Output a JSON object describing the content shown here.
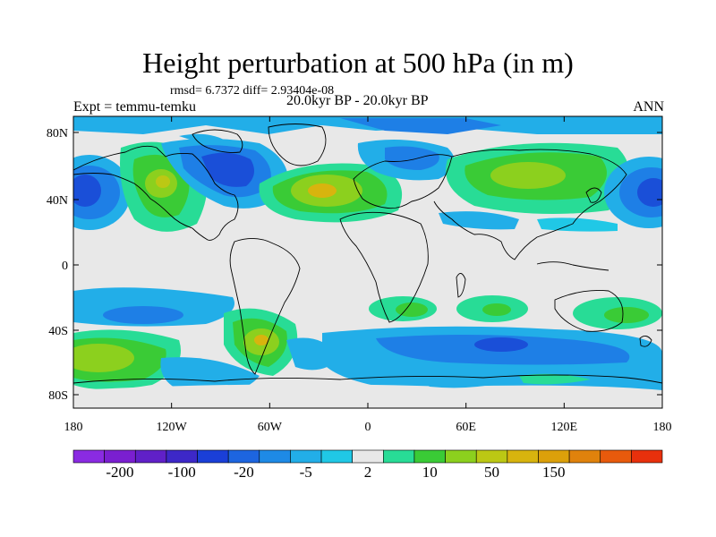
{
  "title": "Height perturbation at 500 hPa (in m)",
  "stats_line": "rmsd= 6.7372 diff= 2.93404e-08",
  "experiment_line": "Expt = temmu-temku",
  "period_line": "20.0kyr BP - 20.0kyr BP",
  "season": "ANN",
  "lat_labels": [
    "80N",
    "40N",
    "0",
    "40S",
    "80S"
  ],
  "lon_labels": [
    "180",
    "120W",
    "60W",
    "0",
    "60E",
    "120E",
    "180"
  ],
  "colorbar": {
    "colors": [
      "#8a2be2",
      "#7a1fd0",
      "#6020c8",
      "#3d28c8",
      "#1a3fd8",
      "#1d65e0",
      "#1e8ae6",
      "#22aee8",
      "#20c8e6",
      "#e8e8e8",
      "#28dc96",
      "#3acb36",
      "#8cd01e",
      "#bcc814",
      "#d8b40e",
      "#dca00a",
      "#e0820c",
      "#e85a0c",
      "#e8300c"
    ],
    "labels": [
      "-200",
      "-100",
      "-20",
      "-5",
      "2",
      "10",
      "50",
      "150"
    ]
  },
  "fields": {
    "blue_dark": "#1a4fd8",
    "blue_mid": "#1e7fe6",
    "blue_light": "#22aee8",
    "cyan": "#20c8e6",
    "mint": "#28dc96",
    "green": "#3acb36",
    "yellowgreen": "#8cd01e",
    "yellow": "#d8b40e",
    "orange": "#e0820c",
    "neutral": "#e8e8e8"
  }
}
